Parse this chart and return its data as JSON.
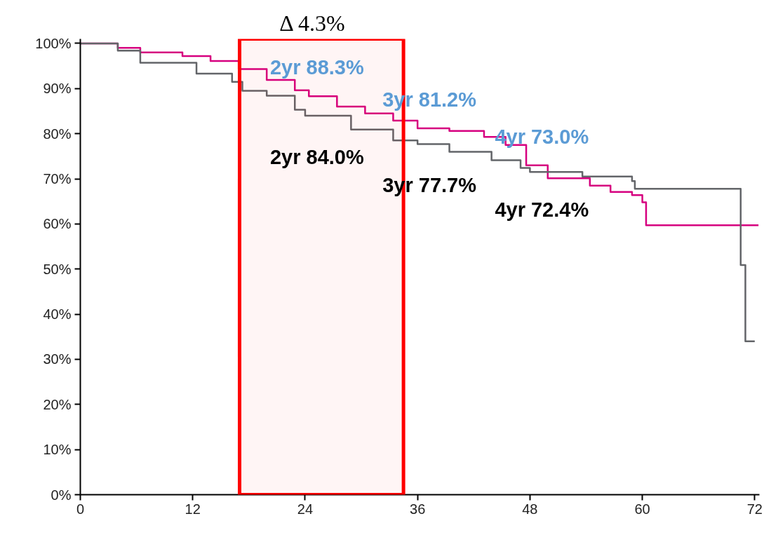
{
  "chart_data": {
    "type": "step",
    "series": [
      {
        "color": "#d6007f",
        "x": [
          0,
          4,
          6.4,
          10.9,
          13.9,
          16.9,
          19.9,
          22.9,
          24.4,
          27.4,
          30.4,
          33.4,
          36,
          39.4,
          43.1,
          45.4,
          47.6,
          49.9,
          54.4,
          56.6,
          58.9,
          60,
          60.4,
          72.4
        ],
        "values": [
          100,
          99,
          98,
          97.2,
          96.1,
          94.3,
          91.9,
          89.6,
          88.3,
          86,
          84.5,
          82.9,
          81.2,
          80.6,
          79.3,
          77.5,
          73,
          70.1,
          68.5,
          67.1,
          66.4,
          64.8,
          59.7,
          59.7
        ]
      },
      {
        "color": "#636569",
        "x": [
          0,
          4,
          6.4,
          12.4,
          16.2,
          17.3,
          19.9,
          22.9,
          24,
          28.9,
          33.4,
          36,
          39.4,
          43.9,
          47,
          48,
          53.6,
          58.9,
          59.2,
          70.5,
          71,
          72
        ],
        "values": [
          100,
          98.4,
          95.7,
          93.3,
          91.5,
          89.5,
          88.4,
          85.3,
          84,
          80.9,
          78.5,
          77.7,
          76,
          74.1,
          72.4,
          71.5,
          70.5,
          69.5,
          67.8,
          50.9,
          34,
          34
        ]
      }
    ],
    "xlim": [
      0,
      72.5
    ],
    "ylim": [
      0,
      101
    ],
    "xticks": [
      0,
      12,
      24,
      36,
      48,
      60,
      72
    ],
    "yticks": [
      {
        "value": 0,
        "label": "0%"
      },
      {
        "value": 10,
        "label": "10%"
      },
      {
        "value": 20,
        "label": "20%"
      },
      {
        "value": 30,
        "label": "30%"
      },
      {
        "value": 40,
        "label": "40%"
      },
      {
        "value": 50,
        "label": "50%"
      },
      {
        "value": 60,
        "label": "60%"
      },
      {
        "value": 70,
        "label": "70%"
      },
      {
        "value": 80,
        "label": "80%"
      },
      {
        "value": 90,
        "label": "90%"
      },
      {
        "value": 100,
        "label": "100%"
      }
    ],
    "bands": [
      {
        "axis": "x",
        "from": 17,
        "to": 34.5,
        "color": "#ff0000"
      }
    ],
    "annotations": [
      "Δ 4.3%",
      {
        "text": "2yr 88.3%",
        "x": 24,
        "y": 88.3
      },
      {
        "text": "3yr 81.2%",
        "x": 36,
        "y": 81.2
      },
      {
        "text": "4yr 73.0%",
        "x": 48,
        "y": 73.0
      },
      {
        "text": "2yr 84.0%",
        "x": 24,
        "y": 84.0
      },
      {
        "text": "3yr 77.7%",
        "x": 36,
        "y": 77.7
      },
      {
        "text": "4yr 72.4%",
        "x": 48,
        "y": 72.4
      }
    ],
    "grid": false
  }
}
